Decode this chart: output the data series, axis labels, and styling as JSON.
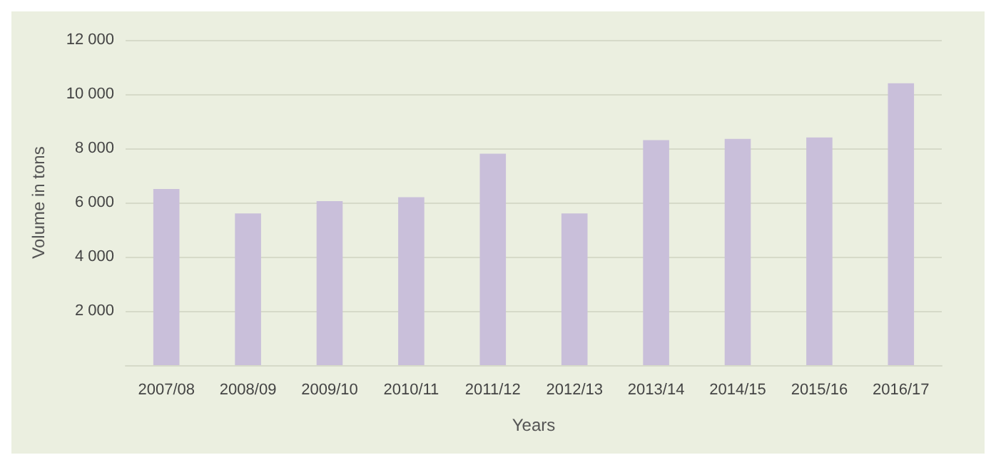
{
  "chart_data": {
    "type": "bar",
    "xlabel": "Years",
    "ylabel": "Volume in tons",
    "categories": [
      "2007/08",
      "2008/09",
      "2009/10",
      "2010/11",
      "2011/12",
      "2012/13",
      "2013/14",
      "2014/15",
      "2015/16",
      "2016/17"
    ],
    "values": [
      6500,
      5600,
      6050,
      6200,
      7800,
      5600,
      8300,
      8350,
      8400,
      10400
    ],
    "color": "#c9bfda",
    "ylim": [
      0,
      12000
    ],
    "yticks": [
      {
        "value": 0,
        "label": null
      },
      {
        "value": 2000,
        "label": "2 000"
      },
      {
        "value": 4000,
        "label": "4 000"
      },
      {
        "value": 6000,
        "label": "6 000"
      },
      {
        "value": 8000,
        "label": "8 000"
      },
      {
        "value": 10000,
        "label": "10 000"
      },
      {
        "value": 12000,
        "label": "12 000"
      }
    ],
    "grid": "y"
  }
}
